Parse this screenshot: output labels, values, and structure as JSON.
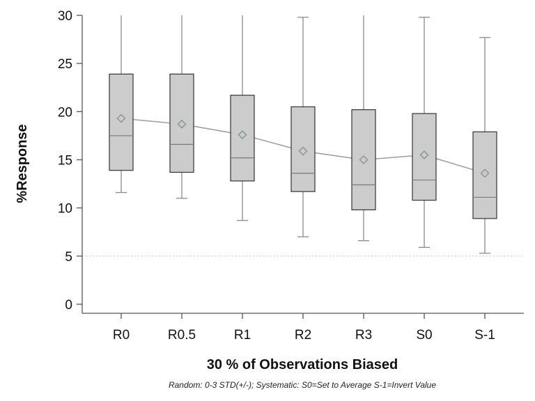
{
  "chart_data": {
    "type": "box",
    "title": "",
    "xlabel": "30 % of Observations Biased",
    "ylabel": "%Response",
    "caption": "Random: 0-3 STD(+/-); Systematic: S0=Set to Average S-1=Invert Value",
    "ylim": [
      0,
      30
    ],
    "yticks": [
      0,
      5,
      10,
      15,
      20,
      25,
      30
    ],
    "reference_line": 5,
    "categories": [
      "R0",
      "R0.5",
      "R1",
      "R2",
      "R3",
      "S0",
      "S-1"
    ],
    "boxes": [
      {
        "min": 11.6,
        "q1": 13.9,
        "median": 17.5,
        "q3": 23.9,
        "max": 31.2,
        "mean": 19.3
      },
      {
        "min": 11.0,
        "q1": 13.7,
        "median": 16.6,
        "q3": 23.9,
        "max": 31.2,
        "mean": 18.7
      },
      {
        "min": 8.7,
        "q1": 12.8,
        "median": 15.2,
        "q3": 21.7,
        "max": 31.2,
        "mean": 17.6
      },
      {
        "min": 7.0,
        "q1": 11.7,
        "median": 13.6,
        "q3": 20.5,
        "max": 29.8,
        "mean": 15.9
      },
      {
        "min": 6.6,
        "q1": 9.8,
        "median": 12.4,
        "q3": 20.2,
        "max": 30.4,
        "mean": 15.0
      },
      {
        "min": 5.9,
        "q1": 10.8,
        "median": 12.9,
        "q3": 19.8,
        "max": 29.8,
        "mean": 15.5
      },
      {
        "min": 5.3,
        "q1": 8.9,
        "median": 11.1,
        "q3": 17.9,
        "max": 27.7,
        "mean": 13.6
      }
    ],
    "grid": false,
    "colors": {
      "box_fill": "#cccccc",
      "box_stroke": "#333333",
      "whisker": "#8a8a8a",
      "median": "#7a7a7a",
      "mean_line": "#a0a0a0",
      "mean_marker": "#8a9a8a",
      "reference_line": "#bdbdbd",
      "axis": "#555555"
    }
  }
}
